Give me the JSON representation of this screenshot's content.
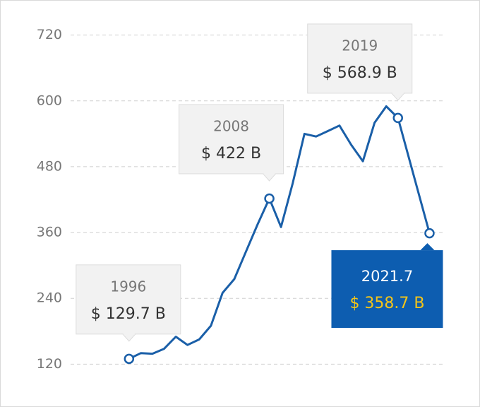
{
  "chart_data": {
    "type": "line",
    "x": [
      1996,
      1997,
      1998,
      1999,
      2000,
      2001,
      2002,
      2003,
      2004,
      2005,
      2006,
      2007,
      2008,
      2009,
      2010,
      2011,
      2012,
      2013,
      2014,
      2015,
      2016,
      2017,
      2018,
      2019,
      2021.7
    ],
    "series": [
      {
        "color": "#1a5fa8",
        "values": [
          129.7,
          140,
          139,
          148,
          170,
          155,
          165,
          190,
          250,
          275,
          325,
          375,
          422,
          370,
          450,
          540,
          535,
          545,
          555,
          520,
          490,
          560,
          590,
          568.9,
          358.7
        ],
        "value_labels": [
          "$ 129.7 B",
          null,
          null,
          null,
          null,
          null,
          null,
          null,
          null,
          null,
          null,
          null,
          "$ 422 B",
          null,
          null,
          null,
          null,
          null,
          null,
          null,
          null,
          null,
          null,
          "$ 568.9 B",
          "$ 358.7 B"
        ]
      }
    ],
    "xlim": [
      1991,
      2023
    ],
    "ylim": [
      105,
      735
    ],
    "yticks": [
      120,
      240,
      360,
      480,
      600,
      720
    ],
    "grid": true
  }
}
